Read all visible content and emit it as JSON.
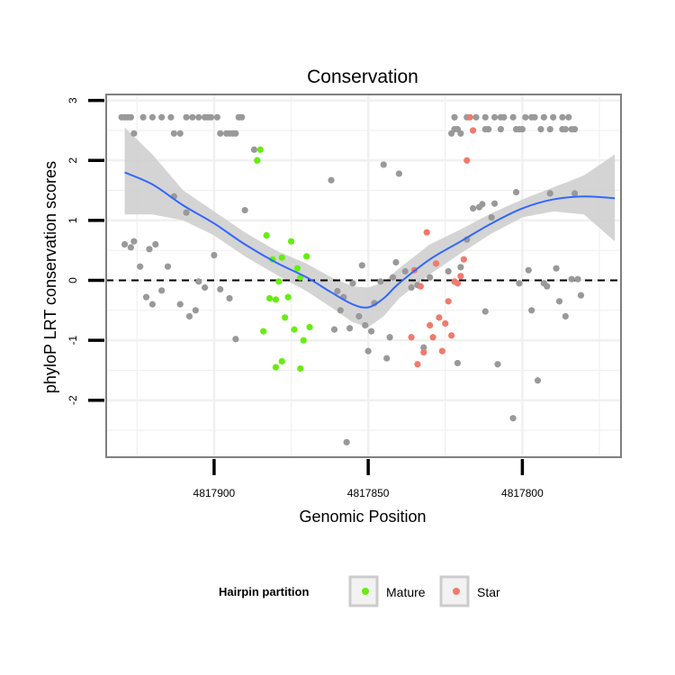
{
  "chart_data": {
    "type": "scatter",
    "title": "Conservation",
    "xlabel": "Genomic Position",
    "ylabel": "phyloP LRT conservation scores",
    "x_reversed": true,
    "xlim": [
      4817768,
      4817935
    ],
    "ylim": [
      -2.95,
      3.1
    ],
    "x_ticks": [
      4817900,
      4817850,
      4817800
    ],
    "x_tick_labels": [
      "4817900",
      "4817850",
      "4817800"
    ],
    "y_ticks": [
      -2,
      -1,
      0,
      1,
      2,
      3
    ],
    "y_tick_labels": [
      "-2",
      "-1",
      "0",
      "1",
      "2",
      "3"
    ],
    "reference_line": {
      "y": 0,
      "style": "dashed",
      "color": "#000000"
    },
    "colors": {
      "none": "#999999",
      "mature": "#66ee11",
      "star": "#f07a6e",
      "smooth_line": "#3366ff",
      "confidence_band": "#cccccc",
      "grid": "#f0f0f0",
      "panel_border": "#7f7f7f"
    },
    "smooth": {
      "method": "loess",
      "x": [
        4817929,
        4817920,
        4817910,
        4817900,
        4817890,
        4817880,
        4817870,
        4817862,
        4817855,
        4817850,
        4817845,
        4817840,
        4817830,
        4817820,
        4817810,
        4817800,
        4817790,
        4817780,
        4817770
      ],
      "y": [
        1.8,
        1.6,
        1.25,
        0.95,
        0.6,
        0.3,
        0.05,
        -0.2,
        -0.4,
        -0.45,
        -0.3,
        -0.05,
        0.35,
        0.65,
        0.95,
        1.2,
        1.35,
        1.4,
        1.37
      ],
      "lower": [
        1.1,
        1.1,
        1.0,
        0.75,
        0.4,
        0.1,
        -0.18,
        -0.45,
        -0.7,
        -0.78,
        -0.6,
        -0.3,
        0.1,
        0.45,
        0.78,
        1.05,
        1.15,
        1.1,
        0.65
      ],
      "upper": [
        2.55,
        2.1,
        1.5,
        1.15,
        0.8,
        0.5,
        0.28,
        0.05,
        -0.1,
        -0.12,
        -0.03,
        0.2,
        0.6,
        0.85,
        1.12,
        1.35,
        1.55,
        1.75,
        2.1
      ]
    },
    "series": [
      {
        "name": "none",
        "points": [
          [
            4817930,
            2.72
          ],
          [
            4817929,
            2.72
          ],
          [
            4817928,
            2.72
          ],
          [
            4817927,
            2.72
          ],
          [
            4817926,
            2.45
          ],
          [
            4817923,
            2.72
          ],
          [
            4817920,
            2.72
          ],
          [
            4817917,
            2.72
          ],
          [
            4817914,
            2.72
          ],
          [
            4817913,
            2.45
          ],
          [
            4817911,
            2.45
          ],
          [
            4817909,
            2.72
          ],
          [
            4817907,
            2.72
          ],
          [
            4817905,
            2.72
          ],
          [
            4817903,
            2.72
          ],
          [
            4817902,
            2.72
          ],
          [
            4817901,
            2.72
          ],
          [
            4817899,
            2.72
          ],
          [
            4817898,
            2.45
          ],
          [
            4817896,
            2.45
          ],
          [
            4817895,
            2.45
          ],
          [
            4817894,
            2.45
          ],
          [
            4817893,
            2.45
          ],
          [
            4817892,
            2.72
          ],
          [
            4817891,
            2.72
          ],
          [
            4817887,
            2.18
          ],
          [
            4817886,
            2.0
          ],
          [
            4817929,
            0.6
          ],
          [
            4817927,
            0.55
          ],
          [
            4817926,
            0.65
          ],
          [
            4817924,
            0.23
          ],
          [
            4817922,
            -0.28
          ],
          [
            4817921,
            0.52
          ],
          [
            4817920,
            -0.4
          ],
          [
            4817919,
            0.6
          ],
          [
            4817917,
            -0.17
          ],
          [
            4817915,
            0.23
          ],
          [
            4817913,
            1.4
          ],
          [
            4817911,
            -0.4
          ],
          [
            4817909,
            1.13
          ],
          [
            4817908,
            -0.6
          ],
          [
            4817906,
            -0.5
          ],
          [
            4817905,
            -0.02
          ],
          [
            4817903,
            -0.12
          ],
          [
            4817900,
            0.42
          ],
          [
            4817898,
            -0.15
          ],
          [
            4817895,
            -0.3
          ],
          [
            4817893,
            -0.98
          ],
          [
            4817890,
            1.17
          ],
          [
            4817862,
            1.67
          ],
          [
            4817861,
            -0.82
          ],
          [
            4817860,
            -0.18
          ],
          [
            4817859,
            -0.5
          ],
          [
            4817858,
            -0.28
          ],
          [
            4817857,
            -2.7
          ],
          [
            4817856,
            -0.8
          ],
          [
            4817855,
            -0.05
          ],
          [
            4817853,
            -0.6
          ],
          [
            4817852,
            0.25
          ],
          [
            4817851,
            -0.75
          ],
          [
            4817850,
            -1.18
          ],
          [
            4817849,
            -0.85
          ],
          [
            4817848,
            -0.38
          ],
          [
            4817846,
            -0.02
          ],
          [
            4817845,
            1.93
          ],
          [
            4817844,
            -1.3
          ],
          [
            4817843,
            -0.95
          ],
          [
            4817842,
            0.05
          ],
          [
            4817841,
            0.3
          ],
          [
            4817840,
            1.78
          ],
          [
            4817838,
            0.15
          ],
          [
            4817836,
            -0.12
          ],
          [
            4817834,
            -0.08
          ],
          [
            4817832,
            -1.12
          ],
          [
            4817782,
            0.02
          ],
          [
            4817781,
            -0.25
          ],
          [
            4817783,
            1.45
          ],
          [
            4817784,
            0.02
          ],
          [
            4817786,
            -0.6
          ],
          [
            4817788,
            -0.35
          ],
          [
            4817789,
            0.2
          ],
          [
            4817791,
            1.45
          ],
          [
            4817792,
            -0.1
          ],
          [
            4817793,
            -0.05
          ],
          [
            4817795,
            -1.67
          ],
          [
            4817797,
            -0.5
          ],
          [
            4817798,
            0.17
          ],
          [
            4817801,
            -0.05
          ],
          [
            4817802,
            1.47
          ],
          [
            4817803,
            -2.3
          ],
          [
            4817808,
            -1.4
          ],
          [
            4817812,
            -0.52
          ],
          [
            4817816,
            1.2
          ],
          [
            4817818,
            0.68
          ],
          [
            4817821,
            -1.38
          ],
          [
            4817820,
            0.22
          ],
          [
            4817824,
            0.15
          ],
          [
            4817830,
            0.05
          ],
          [
            4817813,
            1.27
          ],
          [
            4817814,
            1.22
          ],
          [
            4817809,
            1.28
          ],
          [
            4817810,
            1.05
          ],
          [
            4817785,
            2.72
          ],
          [
            4817787,
            2.72
          ],
          [
            4817790,
            2.72
          ],
          [
            4817791,
            2.52
          ],
          [
            4817793,
            2.72
          ],
          [
            4817794,
            2.52
          ],
          [
            4817796,
            2.72
          ],
          [
            4817797,
            2.72
          ],
          [
            4817799,
            2.72
          ],
          [
            4817803,
            2.72
          ],
          [
            4817806,
            2.72
          ],
          [
            4817807,
            2.72
          ],
          [
            4817807,
            2.52
          ],
          [
            4817809,
            2.72
          ],
          [
            4817812,
            2.72
          ],
          [
            4817815,
            2.72
          ],
          [
            4817818,
            2.72
          ],
          [
            4817822,
            2.72
          ],
          [
            4817823,
            2.45
          ],
          [
            4817783,
            2.52
          ],
          [
            4817784,
            2.52
          ],
          [
            4817800,
            2.52
          ],
          [
            4817801,
            2.52
          ],
          [
            4817802,
            2.52
          ],
          [
            4817811,
            2.52
          ],
          [
            4817812,
            2.52
          ],
          [
            4817820,
            2.45
          ],
          [
            4817821,
            2.52
          ],
          [
            4817822,
            2.52
          ],
          [
            4817786,
            2.52
          ],
          [
            4817787,
            2.52
          ]
        ]
      },
      {
        "name": "Mature",
        "points": [
          [
            4817885,
            2.18
          ],
          [
            4817886,
            2.0
          ],
          [
            4817883,
            0.75
          ],
          [
            4817881,
            0.35
          ],
          [
            4817882,
            -0.3
          ],
          [
            4817884,
            -0.85
          ],
          [
            4817880,
            -0.32
          ],
          [
            4817879,
            -0.02
          ],
          [
            4817878,
            0.38
          ],
          [
            4817877,
            -0.62
          ],
          [
            4817876,
            -0.28
          ],
          [
            4817875,
            0.65
          ],
          [
            4817874,
            -0.82
          ],
          [
            4817873,
            0.2
          ],
          [
            4817872,
            0.05
          ],
          [
            4817871,
            -1.0
          ],
          [
            4817870,
            0.4
          ],
          [
            4817869,
            -0.78
          ],
          [
            4817880,
            -1.45
          ],
          [
            4817878,
            -1.35
          ],
          [
            4817872,
            -1.47
          ]
        ]
      },
      {
        "name": "Star",
        "points": [
          [
            4817817,
            2.72
          ],
          [
            4817816,
            2.5
          ],
          [
            4817818,
            2.0
          ],
          [
            4817819,
            0.35
          ],
          [
            4817820,
            0.07
          ],
          [
            4817821,
            -0.05
          ],
          [
            4817822,
            -0.02
          ],
          [
            4817823,
            -0.92
          ],
          [
            4817824,
            -0.35
          ],
          [
            4817825,
            -0.72
          ],
          [
            4817826,
            -1.18
          ],
          [
            4817827,
            -0.62
          ],
          [
            4817828,
            0.28
          ],
          [
            4817829,
            -0.95
          ],
          [
            4817830,
            -0.75
          ],
          [
            4817831,
            0.8
          ],
          [
            4817832,
            -1.2
          ],
          [
            4817833,
            -0.1
          ],
          [
            4817834,
            -1.4
          ],
          [
            4817835,
            0.17
          ],
          [
            4817836,
            -0.95
          ]
        ]
      }
    ],
    "legend": {
      "title": "Hairpin partition",
      "position": "bottom",
      "entries": [
        {
          "label": "Mature",
          "series": "Mature"
        },
        {
          "label": "Star",
          "series": "Star"
        }
      ]
    }
  }
}
